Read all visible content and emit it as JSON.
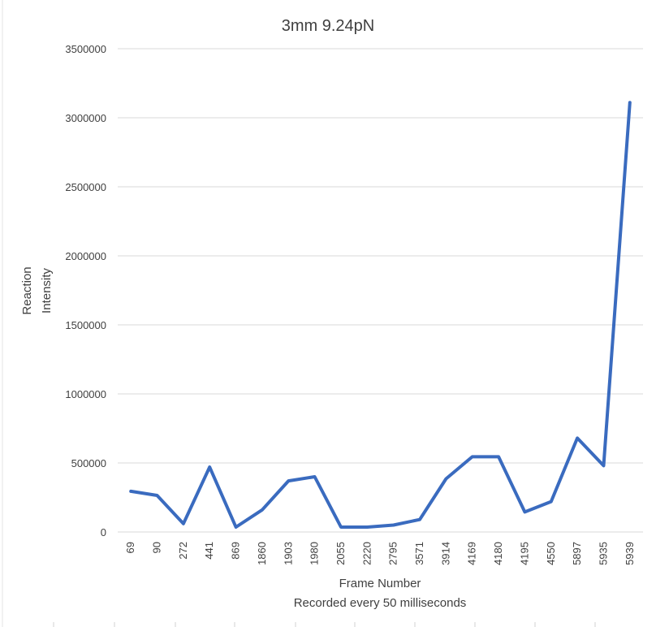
{
  "chart_data": {
    "type": "line",
    "title": "3mm 9.24pN",
    "xlabel": [
      "Frame Number",
      "Recorded every 50 milliseconds"
    ],
    "ylabel": [
      "Reaction",
      "Intensity"
    ],
    "ylim": [
      0,
      3500000
    ],
    "yticks": [
      "0",
      "500000",
      "1000000",
      "1500000",
      "2000000",
      "2500000",
      "3000000",
      "3500000"
    ],
    "grid": true,
    "legend": "none",
    "categories": [
      "69",
      "90",
      "272",
      "441",
      "869",
      "1860",
      "1903",
      "1980",
      "2055",
      "2220",
      "2795",
      "3571",
      "3914",
      "4169",
      "4180",
      "4195",
      "4550",
      "5897",
      "5935",
      "5939"
    ],
    "series": [
      {
        "values": [
          295000,
          265000,
          60000,
          470000,
          35000,
          160000,
          370000,
          400000,
          35000,
          35000,
          50000,
          90000,
          385000,
          545000,
          545000,
          145000,
          220000,
          680000,
          480000,
          3110000
        ],
        "color": "#3A6BBF"
      }
    ]
  }
}
